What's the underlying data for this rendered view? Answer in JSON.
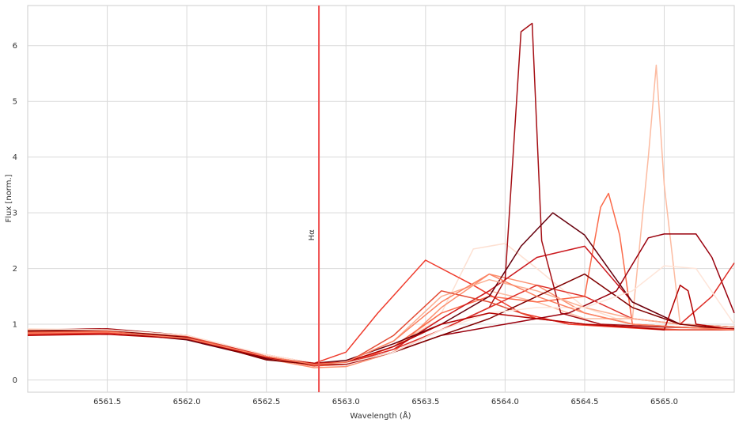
{
  "chart_data": {
    "type": "line",
    "title": "",
    "xlabel": "Wavelength (Å)",
    "ylabel": "Flux [norm.]",
    "xlim": [
      6561.0,
      6565.44
    ],
    "ylim": [
      -0.22,
      6.72
    ],
    "xticks": [
      6561.5,
      6562.0,
      6562.5,
      6563.0,
      6563.5,
      6564.0,
      6564.5,
      6565.0
    ],
    "xtick_labels": [
      "6561.5",
      "6562.0",
      "6562.5",
      "6563.0",
      "6563.5",
      "6564.0",
      "6564.5",
      "6565.0"
    ],
    "yticks": [
      0,
      1,
      2,
      3,
      4,
      5,
      6
    ],
    "ytick_labels": [
      "0",
      "1",
      "2",
      "3",
      "4",
      "5",
      "6"
    ],
    "grid": true,
    "colormap": "Reds",
    "reference_line": {
      "x": 6562.83,
      "label": "Hα",
      "color": "#f05050"
    },
    "series": [
      {
        "color": "#fde0d2",
        "x": [
          6561.0,
          6561.5,
          6562.0,
          6562.5,
          6562.8,
          6563.0,
          6563.3,
          6563.6,
          6563.8,
          6564.0,
          6564.2,
          6564.5,
          6564.8,
          6565.0,
          6565.44
        ],
        "y": [
          0.9,
          0.88,
          0.75,
          0.4,
          0.25,
          0.28,
          0.55,
          1.2,
          2.35,
          2.45,
          2.0,
          1.3,
          1.0,
          0.95,
          0.9
        ]
      },
      {
        "color": "#fcbba1",
        "x": [
          6561.0,
          6561.5,
          6562.0,
          6562.5,
          6562.8,
          6563.0,
          6563.3,
          6563.6,
          6563.9,
          6564.2,
          6564.5,
          6564.8,
          6564.9,
          6564.95,
          6565.0,
          6565.1,
          6565.44
        ],
        "y": [
          0.85,
          0.87,
          0.76,
          0.42,
          0.27,
          0.3,
          0.6,
          1.1,
          1.6,
          1.4,
          1.1,
          1.1,
          4.0,
          5.65,
          3.5,
          1.0,
          0.9
        ]
      },
      {
        "color": "#fc9272",
        "x": [
          6561.0,
          6561.5,
          6562.0,
          6562.5,
          6562.8,
          6563.0,
          6563.3,
          6563.6,
          6563.9,
          6564.2,
          6564.5,
          6564.8,
          6565.1,
          6565.44
        ],
        "y": [
          0.88,
          0.9,
          0.78,
          0.38,
          0.22,
          0.24,
          0.5,
          1.3,
          1.9,
          1.7,
          1.2,
          1.0,
          0.95,
          0.9
        ]
      },
      {
        "color": "#fb6a4a",
        "x": [
          6561.0,
          6561.5,
          6562.0,
          6562.5,
          6562.8,
          6563.0,
          6563.3,
          6563.6,
          6563.9,
          6564.2,
          6564.5,
          6564.6,
          6564.65,
          6564.72,
          6564.8,
          6565.1,
          6565.44
        ],
        "y": [
          0.82,
          0.85,
          0.74,
          0.4,
          0.25,
          0.28,
          0.6,
          1.2,
          1.5,
          1.4,
          1.5,
          3.1,
          3.35,
          2.6,
          1.0,
          0.95,
          0.92
        ]
      },
      {
        "color": "#ef3b2c",
        "x": [
          6561.0,
          6561.5,
          6562.0,
          6562.5,
          6562.8,
          6563.0,
          6563.2,
          6563.5,
          6563.8,
          6564.1,
          6564.4,
          6564.7,
          6565.0,
          6565.44
        ],
        "y": [
          0.8,
          0.84,
          0.76,
          0.45,
          0.3,
          0.5,
          1.2,
          2.15,
          1.7,
          1.2,
          1.0,
          0.95,
          0.9,
          0.9
        ]
      },
      {
        "color": "#cb181d",
        "x": [
          6561.0,
          6561.5,
          6562.0,
          6562.5,
          6562.8,
          6563.0,
          6563.3,
          6563.6,
          6563.9,
          6564.2,
          6564.5,
          6564.8,
          6565.1,
          6565.44
        ],
        "y": [
          0.87,
          0.89,
          0.8,
          0.42,
          0.28,
          0.3,
          0.55,
          1.1,
          1.6,
          2.2,
          2.4,
          1.4,
          1.0,
          0.95
        ]
      },
      {
        "color": "#a50f15",
        "x": [
          6561.0,
          6561.5,
          6562.0,
          6562.5,
          6562.8,
          6563.0,
          6563.3,
          6563.6,
          6563.9,
          6564.0,
          6564.1,
          6564.17,
          6564.23,
          6564.35,
          6564.6,
          6565.0,
          6565.44
        ],
        "y": [
          0.9,
          0.92,
          0.8,
          0.4,
          0.26,
          0.28,
          0.5,
          0.9,
          1.3,
          1.8,
          6.25,
          6.4,
          2.5,
          1.2,
          1.0,
          0.95,
          0.92
        ]
      },
      {
        "color": "#67000d",
        "x": [
          6561.0,
          6561.5,
          6562.0,
          6562.5,
          6562.8,
          6563.0,
          6563.3,
          6563.6,
          6563.9,
          6564.1,
          6564.3,
          6564.5,
          6564.8,
          6565.1,
          6565.44
        ],
        "y": [
          0.88,
          0.86,
          0.72,
          0.38,
          0.3,
          0.35,
          0.65,
          1.0,
          1.5,
          2.4,
          3.0,
          2.6,
          1.4,
          1.0,
          0.95
        ]
      },
      {
        "color": "#99000d",
        "x": [
          6561.0,
          6561.5,
          6562.0,
          6562.5,
          6562.8,
          6563.0,
          6563.3,
          6563.6,
          6564.0,
          6564.4,
          6564.7,
          6564.9,
          6565.0,
          6565.2,
          6565.3,
          6565.44
        ],
        "y": [
          0.85,
          0.88,
          0.78,
          0.4,
          0.28,
          0.3,
          0.5,
          0.8,
          1.0,
          1.2,
          1.6,
          2.55,
          2.62,
          2.62,
          2.2,
          1.2
        ]
      },
      {
        "color": "#de2d26",
        "x": [
          6561.0,
          6561.5,
          6562.0,
          6562.5,
          6562.8,
          6563.0,
          6563.3,
          6563.6,
          6563.9,
          6564.2,
          6564.5,
          6564.8,
          6565.1,
          6565.3,
          6565.44
        ],
        "y": [
          0.83,
          0.85,
          0.77,
          0.42,
          0.27,
          0.3,
          0.55,
          0.9,
          1.3,
          1.7,
          1.5,
          1.1,
          1.0,
          1.5,
          2.1
        ]
      },
      {
        "color": "#fcae91",
        "x": [
          6561.0,
          6561.5,
          6562.0,
          6562.5,
          6562.8,
          6563.0,
          6563.3,
          6563.6,
          6563.9,
          6564.2,
          6564.5,
          6564.8,
          6565.1,
          6565.44
        ],
        "y": [
          0.9,
          0.9,
          0.8,
          0.45,
          0.3,
          0.32,
          0.7,
          1.5,
          1.8,
          1.6,
          1.3,
          1.1,
          1.0,
          0.95
        ]
      },
      {
        "color": "#e34a33",
        "x": [
          6561.0,
          6561.5,
          6562.0,
          6562.5,
          6562.8,
          6563.0,
          6563.3,
          6563.6,
          6563.9,
          6564.2,
          6564.5,
          6564.8,
          6565.1,
          6565.44
        ],
        "y": [
          0.86,
          0.88,
          0.79,
          0.4,
          0.25,
          0.3,
          0.8,
          1.6,
          1.4,
          1.1,
          1.0,
          0.95,
          0.9,
          0.9
        ]
      },
      {
        "color": "#7f0000",
        "x": [
          6561.0,
          6561.5,
          6562.0,
          6562.5,
          6562.8,
          6563.0,
          6563.3,
          6563.6,
          6563.9,
          6564.2,
          6564.5,
          6564.8,
          6565.1,
          6565.44
        ],
        "y": [
          0.88,
          0.9,
          0.76,
          0.36,
          0.28,
          0.3,
          0.5,
          0.8,
          1.1,
          1.5,
          1.9,
          1.3,
          1.0,
          0.9
        ]
      },
      {
        "color": "#fee5d9",
        "x": [
          6561.0,
          6561.5,
          6562.0,
          6562.5,
          6562.8,
          6563.0,
          6563.3,
          6563.6,
          6563.9,
          6564.2,
          6564.5,
          6564.8,
          6565.0,
          6565.2,
          6565.44
        ],
        "y": [
          0.92,
          0.9,
          0.8,
          0.45,
          0.3,
          0.3,
          0.5,
          0.9,
          1.2,
          1.3,
          1.3,
          1.6,
          2.05,
          2.0,
          1.0
        ]
      },
      {
        "color": "#b30000",
        "x": [
          6561.0,
          6561.5,
          6562.0,
          6562.5,
          6562.8,
          6563.0,
          6563.3,
          6563.6,
          6563.9,
          6564.2,
          6564.5,
          6564.8,
          6565.0,
          6565.1,
          6565.15,
          6565.2,
          6565.44
        ],
        "y": [
          0.8,
          0.82,
          0.74,
          0.4,
          0.3,
          0.32,
          0.6,
          1.0,
          1.2,
          1.1,
          1.0,
          0.95,
          0.9,
          1.7,
          1.6,
          1.0,
          0.9
        ]
      },
      {
        "color": "#fb8060",
        "x": [
          6561.0,
          6561.5,
          6562.0,
          6562.5,
          6562.8,
          6563.0,
          6563.3,
          6563.6,
          6563.9,
          6564.2,
          6564.5,
          6564.8,
          6565.1,
          6565.44
        ],
        "y": [
          0.84,
          0.86,
          0.75,
          0.42,
          0.28,
          0.32,
          0.7,
          1.4,
          1.9,
          1.5,
          1.2,
          1.0,
          0.95,
          0.9
        ]
      }
    ]
  }
}
